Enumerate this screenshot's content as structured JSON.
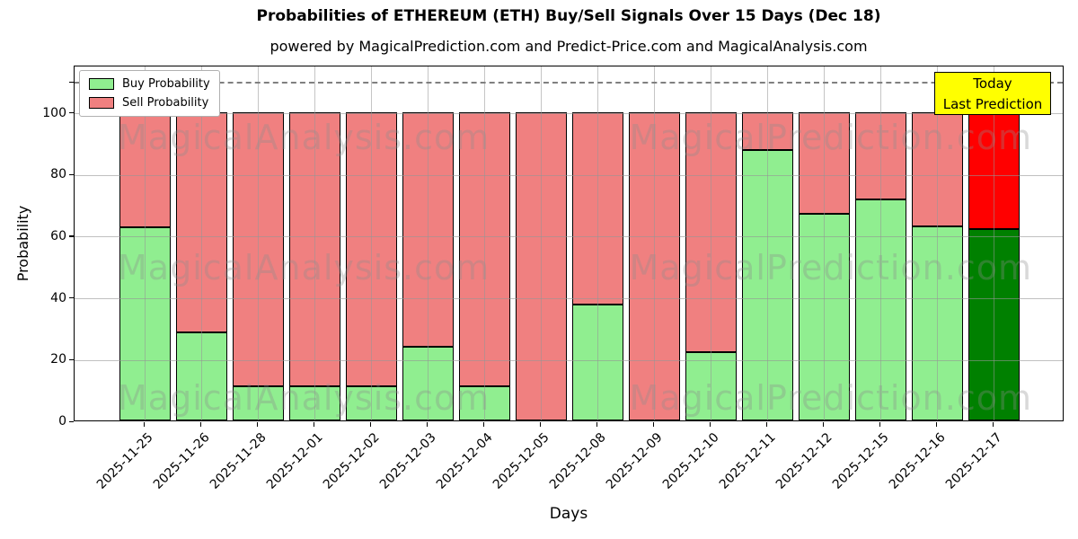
{
  "title": "Probabilities of ETHEREUM (ETH) Buy/Sell Signals Over 15 Days (Dec 18)",
  "subtitle": "powered by MagicalPrediction.com and Predict-Price.com and MagicalAnalysis.com",
  "annotation": {
    "line1": "Today",
    "line2": "Last Prediction"
  },
  "watermarks": {
    "left": "MagicalAnalysis.com",
    "right": "MagicalPrediction.com",
    "rows": 3
  },
  "axes": {
    "ylabel": "Probability",
    "xlabel": "Days",
    "yticks": [
      0,
      20,
      40,
      60,
      80,
      100
    ],
    "ytick_unlabeled": 110,
    "dashed_line_y": 110,
    "ylim": [
      0,
      115.3
    ],
    "grid": true
  },
  "colors": {
    "buy": "#90EE90",
    "sell": "#F08080",
    "today_buy": "#008000",
    "today_sell": "#FF0000",
    "annotation_bg": "#FFFF00",
    "dashed_line": "#808080",
    "grid": "#969696",
    "bar_edge": "#000000"
  },
  "chart_data": {
    "type": "bar",
    "stacked": true,
    "title": "Probabilities of ETHEREUM (ETH) Buy/Sell Signals Over 15 Days (Dec 18)",
    "xlabel": "Days",
    "ylabel": "Probability",
    "ylim": [
      0,
      115.3
    ],
    "grid": true,
    "legend_position": "upper left",
    "categories": [
      "2025-11-25",
      "2025-11-26",
      "2025-11-28",
      "2025-12-01",
      "2025-12-02",
      "2025-12-03",
      "2025-12-04",
      "2025-12-05",
      "2025-12-08",
      "2025-12-09",
      "2025-12-10",
      "2025-12-11",
      "2025-12-12",
      "2025-12-15",
      "2025-12-16",
      "2025-12-17"
    ],
    "series": [
      {
        "name": "Buy Probability",
        "values": [
          62.5,
          28.5,
          11,
          11,
          11,
          24,
          11,
          0,
          37.5,
          0,
          22,
          87.5,
          67,
          71.5,
          63,
          62
        ]
      },
      {
        "name": "Sell Probability",
        "values": [
          37.5,
          71.5,
          89,
          89,
          89,
          76,
          89,
          100,
          62.5,
          100,
          78,
          12.5,
          33,
          28.5,
          37,
          38
        ]
      }
    ],
    "highlight_last_bar": true,
    "annotation_on_last_bar": "Today\nLast Prediction"
  }
}
